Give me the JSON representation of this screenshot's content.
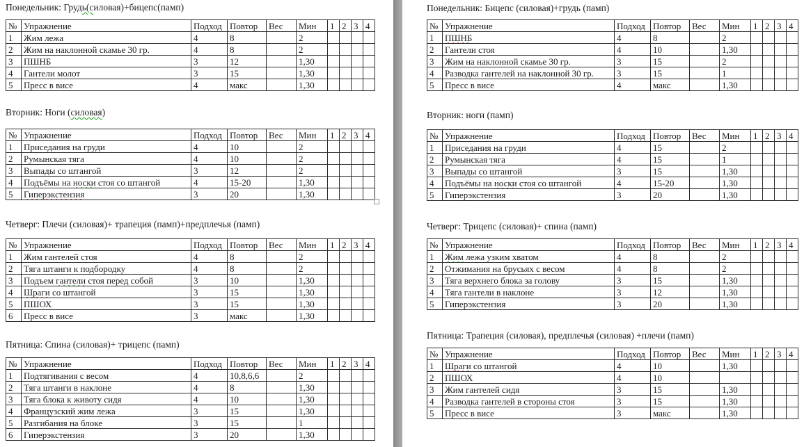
{
  "doc": {
    "table_headers": [
      "№",
      "Упражнение",
      "Подход",
      "Повтор",
      "Вес",
      "Мин",
      "1",
      "2",
      "3",
      "4"
    ],
    "colors": {
      "spellcheck_red": "#cc1100",
      "spellcheck_green": "#14a014",
      "page_gap_gray": "#9a9a9a",
      "table_border": "#2b2b2b",
      "text": "#1c1c1c"
    },
    "columns": [
      {
        "id": "left",
        "sections": [
          {
            "title": [
              {
                "t": "Понедельник: Груд"
              },
              {
                "t": "ь(с",
                "sq": "green"
              },
              {
                "t": "иловая)+бицепс(памп)"
              }
            ],
            "rows": [
              {
                "num": "1",
                "exercise": [
                  {
                    "t": "Жим лежа"
                  }
                ],
                "sets": "4",
                "reps": "8",
                "weight": "",
                "rest": "2"
              },
              {
                "num": "2",
                "exercise": [
                  {
                    "t": "Жим на наклонной скамье 30 гр."
                  }
                ],
                "sets": "4",
                "reps": "8",
                "weight": "",
                "rest": "2"
              },
              {
                "num": "3",
                "exercise": [
                  {
                    "t": "ПШНБ"
                  }
                ],
                "sets": "3",
                "reps": "12",
                "weight": "",
                "rest": "1,30"
              },
              {
                "num": "4",
                "exercise": [
                  {
                    "t": "Гантели молот"
                  }
                ],
                "sets": "3",
                "reps": "15",
                "weight": "",
                "rest": "1,30"
              },
              {
                "num": "5",
                "exercise": [
                  {
                    "t": "Пресс в висе"
                  }
                ],
                "sets": "4",
                "reps": "макс",
                "weight": "",
                "rest": "1,30"
              }
            ]
          },
          {
            "title": [
              {
                "t": "Вторник: Ноги ("
              },
              {
                "t": "силовая",
                "sq": "green"
              },
              {
                "t": ")"
              }
            ],
            "has_resize_handle": true,
            "rows": [
              {
                "num": "1",
                "exercise": [
                  {
                    "t": "Приседания на груди"
                  }
                ],
                "sets": "4",
                "reps": "10",
                "weight": "",
                "rest": "2"
              },
              {
                "num": "2",
                "exercise": [
                  {
                    "t": "Румынская тяга"
                  }
                ],
                "sets": "4",
                "reps": "10",
                "weight": "",
                "rest": "2"
              },
              {
                "num": "3",
                "exercise": [
                  {
                    "t": "Выпады со штангой"
                  }
                ],
                "sets": "3",
                "reps": "12",
                "weight": "",
                "rest": "2"
              },
              {
                "num": "4",
                "exercise": [
                  {
                    "t": "Подъёмы на "
                  },
                  {
                    "t": "носки",
                    "sq": "green"
                  },
                  {
                    "t": " стоя со штангой"
                  }
                ],
                "sets": "4",
                "reps": "15-20",
                "weight": "",
                "rest": "1,30"
              },
              {
                "num": "5",
                "exercise": [
                  {
                    "t": "Гиперэкстензия",
                    "sq": "red"
                  }
                ],
                "sets": "3",
                "reps": "20",
                "weight": "",
                "rest": "1,30"
              }
            ]
          },
          {
            "title": [
              {
                "t": "Четверг: Плечи (силовая)+ трапеция (памп)+предплечья (памп)"
              }
            ],
            "rows": [
              {
                "num": "1",
                "exercise": [
                  {
                    "t": "Жим гантелей стоя"
                  }
                ],
                "sets": "4",
                "reps": "8",
                "weight": "",
                "rest": "2"
              },
              {
                "num": "2",
                "exercise": [
                  {
                    "t": "Тяга штанги к подбородку"
                  }
                ],
                "sets": "4",
                "reps": "8",
                "weight": "",
                "rest": "2"
              },
              {
                "num": "3",
                "exercise": [
                  {
                    "t": "Подъем "
                  },
                  {
                    "t": "гантели",
                    "sq": "green"
                  },
                  {
                    "t": " стоя перед собой"
                  }
                ],
                "sets": "3",
                "reps": "10",
                "weight": "",
                "rest": "1,30"
              },
              {
                "num": "4",
                "exercise": [
                  {
                    "t": "Шраги",
                    "sq": "red"
                  },
                  {
                    "t": " со штангой"
                  }
                ],
                "sets": "3",
                "reps": "15",
                "weight": "",
                "rest": "1,30"
              },
              {
                "num": "5",
                "exercise": [
                  {
                    "t": "ПШОХ"
                  }
                ],
                "sets": "3",
                "reps": "15",
                "weight": "",
                "rest": "1,30"
              },
              {
                "num": "6",
                "exercise": [
                  {
                    "t": "Пресс в висе"
                  }
                ],
                "sets": "3",
                "reps": "макс",
                "weight": "",
                "rest": "1,30"
              }
            ]
          },
          {
            "title": [
              {
                "t": "Пятница: Спина (силовая)+ трицепс (памп)"
              }
            ],
            "rows": [
              {
                "num": "1",
                "exercise": [
                  {
                    "t": "Подтягивания с весом"
                  }
                ],
                "sets": "4",
                "reps": "10,8,6,6",
                "weight": "",
                "rest": "2"
              },
              {
                "num": "2",
                "exercise": [
                  {
                    "t": "Тяга штанги в наклоне"
                  }
                ],
                "sets": "4",
                "reps": "8",
                "weight": "",
                "rest": "1,30"
              },
              {
                "num": "3",
                "exercise": [
                  {
                    "t": "Тяга блока к животу сидя"
                  }
                ],
                "sets": "4",
                "reps": "10",
                "weight": "",
                "rest": "1,30"
              },
              {
                "num": "4",
                "exercise": [
                  {
                    "t": "Французский жим лежа"
                  }
                ],
                "sets": "3",
                "reps": "15",
                "weight": "",
                "rest": "1,30"
              },
              {
                "num": "5",
                "exercise": [
                  {
                    "t": "Разгибания на блоке"
                  }
                ],
                "sets": "3",
                "reps": "15",
                "weight": "",
                "rest": "1"
              },
              {
                "num": "6",
                "exercise": [
                  {
                    "t": "Гиперэкстензия"
                  }
                ],
                "sets": "3",
                "reps": "20",
                "weight": "",
                "rest": "1,30"
              }
            ]
          }
        ]
      },
      {
        "id": "right",
        "sections": [
          {
            "title": [
              {
                "t": "Понедельник: Бицепс (силовая)+грудь (памп)"
              }
            ],
            "rows": [
              {
                "num": "1",
                "exercise": [
                  {
                    "t": "ПШНБ",
                    "sq": "red"
                  }
                ],
                "sets": "4",
                "reps": "8",
                "weight": "",
                "rest": "2"
              },
              {
                "num": "2",
                "exercise": [
                  {
                    "t": "Гантели стоя"
                  }
                ],
                "sets": "4",
                "reps": "10",
                "weight": "",
                "rest": "1,30"
              },
              {
                "num": "3",
                "exercise": [
                  {
                    "t": "Жим на наклонной скамье 30 гр."
                  }
                ],
                "sets": "3",
                "reps": "15",
                "weight": "",
                "rest": "2"
              },
              {
                "num": "4",
                "exercise": [
                  {
                    "t": "Разводка гантелей на наклонной 30 гр."
                  }
                ],
                "sets": "3",
                "reps": "15",
                "weight": "",
                "rest": "1"
              },
              {
                "num": "5",
                "exercise": [
                  {
                    "t": "Пресс в висе"
                  }
                ],
                "sets": "4",
                "reps": "макс",
                "weight": "",
                "rest": "1,30"
              }
            ]
          },
          {
            "title": [
              {
                "t": "Вторник: ноги (памп)"
              }
            ],
            "rows": [
              {
                "num": "1",
                "exercise": [
                  {
                    "t": "Приседания на груди"
                  }
                ],
                "sets": "4",
                "reps": "15",
                "weight": "",
                "rest": "2"
              },
              {
                "num": "2",
                "exercise": [
                  {
                    "t": "Румынская тяга"
                  }
                ],
                "sets": "4",
                "reps": "15",
                "weight": "",
                "rest": "1"
              },
              {
                "num": "3",
                "exercise": [
                  {
                    "t": "Выпады со штангой"
                  }
                ],
                "sets": "3",
                "reps": "15",
                "weight": "",
                "rest": "1,30"
              },
              {
                "num": "4",
                "exercise": [
                  {
                    "t": "Подъёмы на "
                  },
                  {
                    "t": "носки",
                    "sq": "green"
                  },
                  {
                    "t": " стоя со штангой"
                  }
                ],
                "sets": "4",
                "reps": "15-20",
                "weight": "",
                "rest": "1,30"
              },
              {
                "num": "5",
                "exercise": [
                  {
                    "t": "Гиперэкстензия"
                  }
                ],
                "sets": "3",
                "reps": "20",
                "weight": "",
                "rest": "1,30"
              }
            ]
          },
          {
            "title": [
              {
                "t": "Четверг: Трицепс (силовая)+ спина (памп)"
              }
            ],
            "rows": [
              {
                "num": "1",
                "exercise": [
                  {
                    "t": "Жим",
                    "sq": "green"
                  },
                  {
                    "t": " лежа узким хватом"
                  }
                ],
                "sets": "4",
                "reps": "8",
                "weight": "",
                "rest": "2"
              },
              {
                "num": "2",
                "exercise": [
                  {
                    "t": "Отжимания на брусьях с весом"
                  }
                ],
                "sets": "4",
                "reps": "8",
                "weight": "",
                "rest": "2"
              },
              {
                "num": "3",
                "exercise": [
                  {
                    "t": "Тяга верхнего блока за голову"
                  }
                ],
                "sets": "3",
                "reps": "15",
                "weight": "",
                "rest": "1,30"
              },
              {
                "num": "4",
                "exercise": [
                  {
                    "t": "Тяга гантели в наклоне"
                  }
                ],
                "sets": "3",
                "reps": "12",
                "weight": "",
                "rest": "1,30"
              },
              {
                "num": "5",
                "exercise": [
                  {
                    "t": "Гиперэкстензия"
                  }
                ],
                "sets": "3",
                "reps": "20",
                "weight": "",
                "rest": "1,30"
              }
            ]
          },
          {
            "title": [
              {
                "t": "Пятница: Трапеция (силовая), предплечья (силовая) +плечи (памп)"
              }
            ],
            "rows": [
              {
                "num": "1",
                "exercise": [
                  {
                    "t": "Шраги",
                    "sq": "red"
                  },
                  {
                    "t": " со штангой"
                  }
                ],
                "sets": "4",
                "reps": "10",
                "weight": "",
                "rest": "1,30"
              },
              {
                "num": "2",
                "exercise": [
                  {
                    "t": "ПШОХ"
                  }
                ],
                "sets": "4",
                "reps": "10",
                "weight": "",
                "rest": ""
              },
              {
                "num": "3",
                "exercise": [
                  {
                    "t": "Жим гантелей сидя"
                  }
                ],
                "sets": "3",
                "reps": "15",
                "weight": "",
                "rest": "1,30"
              },
              {
                "num": "4",
                "exercise": [
                  {
                    "t": "Разводка гантелей в стороны стоя"
                  }
                ],
                "sets": "3",
                "reps": "15",
                "weight": "",
                "rest": "1,30"
              },
              {
                "num": "5",
                "exercise": [
                  {
                    "t": "Пресс в висе"
                  }
                ],
                "sets": "3",
                "reps": "макс",
                "weight": "",
                "rest": "1,30"
              }
            ]
          }
        ]
      }
    ]
  }
}
